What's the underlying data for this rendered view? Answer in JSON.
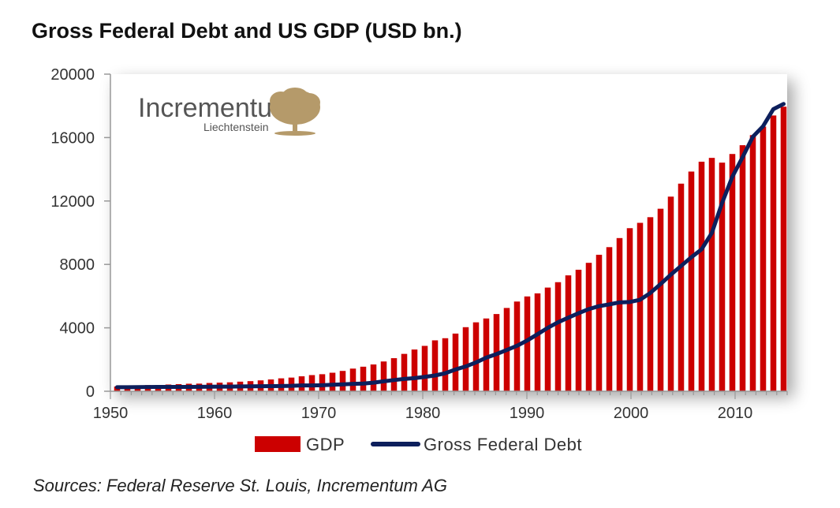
{
  "title": "Gross Federal Debt and US GDP (USD bn.)",
  "source": "Sources: Federal Reserve St. Louis, Incrementum AG",
  "logo": {
    "name": "Incrementum",
    "sub": "Liechtenstein",
    "icon": "tree-icon"
  },
  "colors": {
    "gdp": "#cc0000",
    "debt": "#0d1f5c",
    "grid": "#999999"
  },
  "chart_data": {
    "type": "bar",
    "title": "Gross Federal Debt and US GDP (USD bn.)",
    "xlabel": "",
    "ylabel": "",
    "ylim": [
      0,
      20000
    ],
    "xlim": [
      1950,
      2015
    ],
    "yticks": [
      0,
      4000,
      8000,
      12000,
      16000,
      20000
    ],
    "xticks": [
      1950,
      1960,
      1970,
      1980,
      1990,
      2000,
      2010
    ],
    "legend": "bottom",
    "grid": false,
    "x": [
      1950,
      1951,
      1952,
      1953,
      1954,
      1955,
      1956,
      1957,
      1958,
      1959,
      1960,
      1961,
      1962,
      1963,
      1964,
      1965,
      1966,
      1967,
      1968,
      1969,
      1970,
      1971,
      1972,
      1973,
      1974,
      1975,
      1976,
      1977,
      1978,
      1979,
      1980,
      1981,
      1982,
      1983,
      1984,
      1985,
      1986,
      1987,
      1988,
      1989,
      1990,
      1991,
      1992,
      1993,
      1994,
      1995,
      1996,
      1997,
      1998,
      1999,
      2000,
      2001,
      2002,
      2003,
      2004,
      2005,
      2006,
      2007,
      2008,
      2009,
      2010,
      2011,
      2012,
      2013,
      2014,
      2015
    ],
    "series": [
      {
        "name": "GDP",
        "type": "bar",
        "values": [
          300,
          347,
          367,
          389,
          390,
          425,
          449,
          474,
          481,
          522,
          543,
          563,
          605,
          638,
          686,
          744,
          815,
          862,
          943,
          1019,
          1075,
          1168,
          1283,
          1429,
          1549,
          1689,
          1878,
          2086,
          2357,
          2633,
          2862,
          3211,
          3345,
          3638,
          4041,
          4347,
          4590,
          4870,
          5253,
          5658,
          5980,
          6174,
          6539,
          6879,
          7309,
          7664,
          8100,
          8609,
          9089,
          9661,
          10285,
          10622,
          10978,
          11511,
          12275,
          13094,
          13856,
          14478,
          14719,
          14419,
          14964,
          15518,
          16155,
          16692,
          17393,
          17947
        ]
      },
      {
        "name": "Gross Federal Debt",
        "type": "line",
        "values": [
          257,
          255,
          259,
          266,
          271,
          274,
          272,
          272,
          280,
          287,
          290,
          292,
          303,
          311,
          317,
          322,
          328,
          340,
          369,
          366,
          381,
          408,
          436,
          466,
          484,
          542,
          629,
          706,
          777,
          829,
          909,
          995,
          1137,
          1372,
          1565,
          1817,
          2121,
          2346,
          2601,
          2868,
          3206,
          3598,
          4002,
          4351,
          4643,
          4921,
          5182,
          5369,
          5478,
          5606,
          5629,
          5770,
          6198,
          6760,
          7355,
          7905,
          8451,
          8951,
          9986,
          11876,
          13529,
          14764,
          16051,
          16719,
          17794,
          18120
        ]
      }
    ]
  },
  "legend": {
    "gdp_label": "GDP",
    "debt_label": "Gross Federal Debt"
  }
}
